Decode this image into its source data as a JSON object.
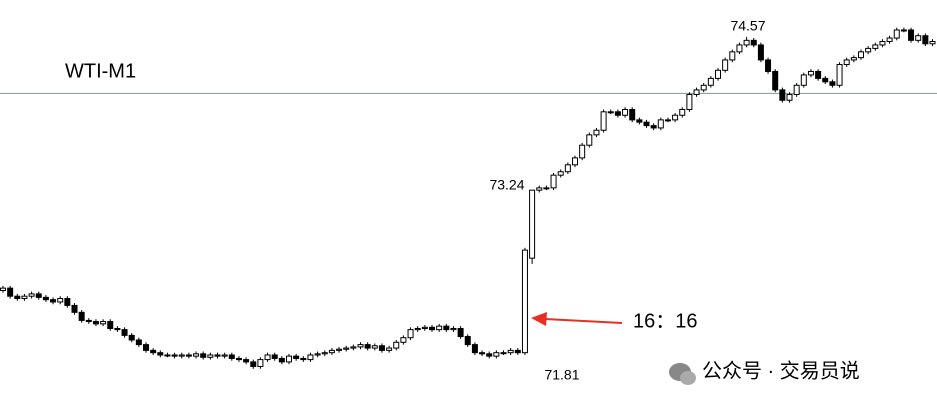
{
  "chart_data": {
    "type": "candlestick",
    "title": "WTI-M1",
    "annotations": [
      "74.57",
      "73.24",
      "71.81",
      "16：16"
    ],
    "watermark": "公众号 · 交易员说",
    "ylim": [
      71.35,
      74.89
    ],
    "hline": 74.08,
    "hline_color": "#7f9a8a",
    "up_color": "#ffffff",
    "down_color": "#000000",
    "edge_color": "#000000",
    "arrow_color": "#e53024",
    "ohlc": [
      [
        72.37,
        72.41,
        72.35,
        72.39
      ],
      [
        72.39,
        72.41,
        72.3,
        72.32
      ],
      [
        72.32,
        72.34,
        72.28,
        72.3
      ],
      [
        72.3,
        72.34,
        72.28,
        72.32
      ],
      [
        72.32,
        72.36,
        72.3,
        72.34
      ],
      [
        72.34,
        72.36,
        72.29,
        72.31
      ],
      [
        72.31,
        72.33,
        72.27,
        72.29
      ],
      [
        72.29,
        72.31,
        72.25,
        72.27
      ],
      [
        72.27,
        72.32,
        72.25,
        72.3
      ],
      [
        72.3,
        72.32,
        72.22,
        72.24
      ],
      [
        72.24,
        72.26,
        72.16,
        72.18
      ],
      [
        72.18,
        72.2,
        72.09,
        72.11
      ],
      [
        72.11,
        72.13,
        72.08,
        72.1
      ],
      [
        72.1,
        72.12,
        72.06,
        72.08
      ],
      [
        72.08,
        72.12,
        72.06,
        72.1
      ],
      [
        72.1,
        72.12,
        72.02,
        72.04
      ],
      [
        72.04,
        72.06,
        72.01,
        72.03
      ],
      [
        72.03,
        72.05,
        71.96,
        71.98
      ],
      [
        71.98,
        72.0,
        71.92,
        71.94
      ],
      [
        71.94,
        71.96,
        71.88,
        71.9
      ],
      [
        71.9,
        71.92,
        71.83,
        71.85
      ],
      [
        71.85,
        71.87,
        71.81,
        71.83
      ],
      [
        71.83,
        71.85,
        71.79,
        71.81
      ],
      [
        71.81,
        71.83,
        71.79,
        71.81
      ],
      [
        71.81,
        71.83,
        71.78,
        71.8
      ],
      [
        71.8,
        71.83,
        71.78,
        71.81
      ],
      [
        71.81,
        71.83,
        71.78,
        71.8
      ],
      [
        71.8,
        71.84,
        71.78,
        71.82
      ],
      [
        71.82,
        71.84,
        71.77,
        71.79
      ],
      [
        71.79,
        71.83,
        71.77,
        71.81
      ],
      [
        71.81,
        71.83,
        71.78,
        71.8
      ],
      [
        71.8,
        71.83,
        71.78,
        71.81
      ],
      [
        71.81,
        71.83,
        71.76,
        71.78
      ],
      [
        71.78,
        71.8,
        71.75,
        71.77
      ],
      [
        71.77,
        71.79,
        71.73,
        71.75
      ],
      [
        71.75,
        71.77,
        71.69,
        71.71
      ],
      [
        71.71,
        71.79,
        71.69,
        71.77
      ],
      [
        71.77,
        71.83,
        71.75,
        71.81
      ],
      [
        71.81,
        71.83,
        71.76,
        71.78
      ],
      [
        71.78,
        71.8,
        71.73,
        71.75
      ],
      [
        71.75,
        71.82,
        71.73,
        71.8
      ],
      [
        71.8,
        71.82,
        71.76,
        71.78
      ],
      [
        71.78,
        71.8,
        71.75,
        71.77
      ],
      [
        71.77,
        71.83,
        71.75,
        71.81
      ],
      [
        71.81,
        71.84,
        71.79,
        71.82
      ],
      [
        71.82,
        71.85,
        71.8,
        71.83
      ],
      [
        71.83,
        71.87,
        71.81,
        71.85
      ],
      [
        71.85,
        71.88,
        71.83,
        71.86
      ],
      [
        71.86,
        71.89,
        71.84,
        71.87
      ],
      [
        71.87,
        71.9,
        71.85,
        71.88
      ],
      [
        71.88,
        71.92,
        71.86,
        71.9
      ],
      [
        71.9,
        71.92,
        71.85,
        71.87
      ],
      [
        71.87,
        71.91,
        71.85,
        71.89
      ],
      [
        71.89,
        71.91,
        71.83,
        71.85
      ],
      [
        71.85,
        71.89,
        71.83,
        71.87
      ],
      [
        71.87,
        71.94,
        71.85,
        71.92
      ],
      [
        71.92,
        71.98,
        71.9,
        71.96
      ],
      [
        71.96,
        72.05,
        71.94,
        72.03
      ],
      [
        72.03,
        72.06,
        72.01,
        72.04
      ],
      [
        72.04,
        72.07,
        72.02,
        72.05
      ],
      [
        72.05,
        72.07,
        72.01,
        72.03
      ],
      [
        72.03,
        72.08,
        72.01,
        72.06
      ],
      [
        72.06,
        72.08,
        72.01,
        72.03
      ],
      [
        72.03,
        72.06,
        72.01,
        72.04
      ],
      [
        72.04,
        72.06,
        71.95,
        71.97
      ],
      [
        71.97,
        71.99,
        71.88,
        71.9
      ],
      [
        71.9,
        71.92,
        71.81,
        71.83
      ],
      [
        71.83,
        71.85,
        71.8,
        71.82
      ],
      [
        71.82,
        71.84,
        71.78,
        71.8
      ],
      [
        71.8,
        71.85,
        71.78,
        71.83
      ],
      [
        71.83,
        71.85,
        71.81,
        71.83
      ],
      [
        71.83,
        71.87,
        71.81,
        71.85
      ],
      [
        71.85,
        71.87,
        71.81,
        71.83
      ],
      [
        71.83,
        72.74,
        71.81,
        72.72
      ],
      [
        72.65,
        73.24,
        72.6,
        73.24
      ],
      [
        73.24,
        73.28,
        73.22,
        73.26
      ],
      [
        73.26,
        73.28,
        73.24,
        73.26
      ],
      [
        73.26,
        73.39,
        73.24,
        73.37
      ],
      [
        73.37,
        73.42,
        73.35,
        73.4
      ],
      [
        73.4,
        73.48,
        73.38,
        73.46
      ],
      [
        73.46,
        73.54,
        73.44,
        73.52
      ],
      [
        73.52,
        73.65,
        73.5,
        73.63
      ],
      [
        73.63,
        73.74,
        73.61,
        73.72
      ],
      [
        73.72,
        73.78,
        73.7,
        73.76
      ],
      [
        73.76,
        73.94,
        73.74,
        73.92
      ],
      [
        73.92,
        73.94,
        73.9,
        73.92
      ],
      [
        73.92,
        73.94,
        73.87,
        73.89
      ],
      [
        73.89,
        73.96,
        73.87,
        73.94
      ],
      [
        73.94,
        73.96,
        73.83,
        73.85
      ],
      [
        73.85,
        73.87,
        73.81,
        73.83
      ],
      [
        73.83,
        73.85,
        73.78,
        73.8
      ],
      [
        73.8,
        73.82,
        73.76,
        73.78
      ],
      [
        73.78,
        73.87,
        73.76,
        73.85
      ],
      [
        73.85,
        73.87,
        73.83,
        73.85
      ],
      [
        73.85,
        73.91,
        73.83,
        73.89
      ],
      [
        73.89,
        73.96,
        73.87,
        73.94
      ],
      [
        73.94,
        74.09,
        73.92,
        74.07
      ],
      [
        74.07,
        74.13,
        74.05,
        74.11
      ],
      [
        74.11,
        74.17,
        74.09,
        74.15
      ],
      [
        74.15,
        74.23,
        74.13,
        74.21
      ],
      [
        74.21,
        74.3,
        74.19,
        74.28
      ],
      [
        74.28,
        74.39,
        74.26,
        74.37
      ],
      [
        74.37,
        74.46,
        74.35,
        74.44
      ],
      [
        74.44,
        74.52,
        74.42,
        74.5
      ],
      [
        74.5,
        74.57,
        74.48,
        74.54
      ],
      [
        74.54,
        74.56,
        74.48,
        74.5
      ],
      [
        74.5,
        74.52,
        74.35,
        74.37
      ],
      [
        74.37,
        74.39,
        74.25,
        74.27
      ],
      [
        74.27,
        74.29,
        74.09,
        74.11
      ],
      [
        74.11,
        74.13,
        74.0,
        74.02
      ],
      [
        74.02,
        74.09,
        74.0,
        74.07
      ],
      [
        74.07,
        74.17,
        74.05,
        74.15
      ],
      [
        74.15,
        74.26,
        74.13,
        74.24
      ],
      [
        74.24,
        74.29,
        74.22,
        74.27
      ],
      [
        74.27,
        74.29,
        74.19,
        74.21
      ],
      [
        74.21,
        74.23,
        74.16,
        74.18
      ],
      [
        74.18,
        74.2,
        74.13,
        74.15
      ],
      [
        74.15,
        74.35,
        74.13,
        74.33
      ],
      [
        74.33,
        74.39,
        74.31,
        74.37
      ],
      [
        74.37,
        74.41,
        74.35,
        74.39
      ],
      [
        74.39,
        74.46,
        74.37,
        74.44
      ],
      [
        74.44,
        74.49,
        74.42,
        74.47
      ],
      [
        74.47,
        74.52,
        74.45,
        74.5
      ],
      [
        74.5,
        74.55,
        74.48,
        74.53
      ],
      [
        74.53,
        74.58,
        74.51,
        74.56
      ],
      [
        74.56,
        74.65,
        74.54,
        74.63
      ],
      [
        74.63,
        74.65,
        74.61,
        74.63
      ],
      [
        74.63,
        74.65,
        74.52,
        74.54
      ],
      [
        74.54,
        74.6,
        74.52,
        74.58
      ],
      [
        74.58,
        74.6,
        74.49,
        74.51
      ],
      [
        74.51,
        74.55,
        74.49,
        74.53
      ]
    ]
  }
}
